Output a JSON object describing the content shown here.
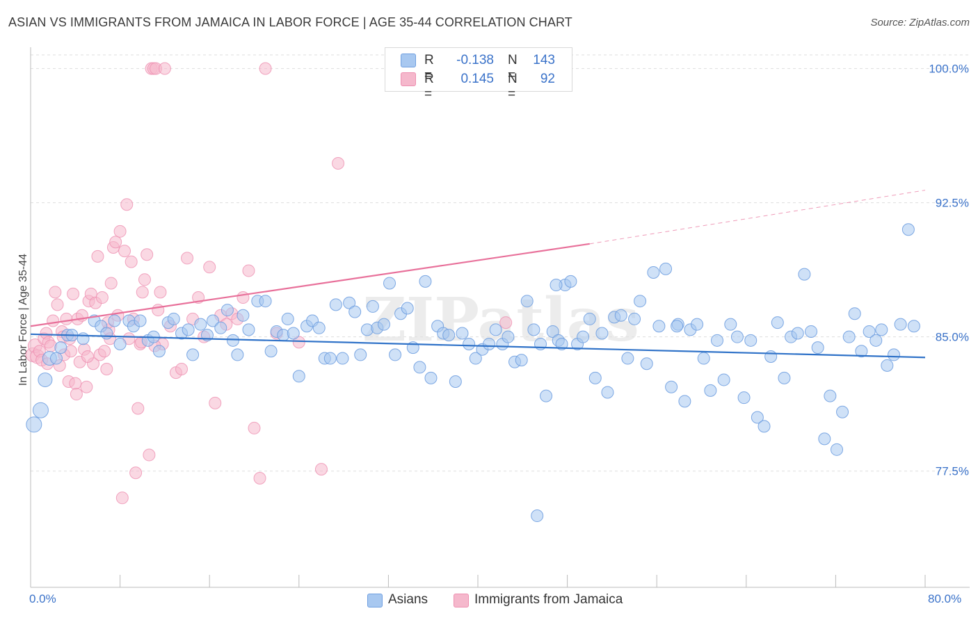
{
  "title": "ASIAN VS IMMIGRANTS FROM JAMAICA IN LABOR FORCE | AGE 35-44 CORRELATION CHART",
  "source": "Source: ZipAtlas.com",
  "watermark": "ZIPatlas",
  "legend": {
    "rows": [
      {
        "r_label": "R =",
        "r_value": "-0.138",
        "n_label": "N =",
        "n_value": "143",
        "color": "#a8c8f0"
      },
      {
        "r_label": "R =",
        "r_value": "0.145",
        "n_label": "N =",
        "n_value": "92",
        "color": "#f5b8cc"
      }
    ]
  },
  "bottom_legend": [
    {
      "label": "Asians",
      "color": "#a8c8f0"
    },
    {
      "label": "Immigrants from Jamaica",
      "color": "#f5b8cc"
    }
  ],
  "colors": {
    "asian_fill": "#a8c8f0",
    "asian_stroke": "#6f9fe0",
    "asian_line": "#2f72c8",
    "jamaica_fill": "#f5b8cc",
    "jamaica_stroke": "#ee8fb0",
    "jamaica_line": "#e8709a",
    "tick_label": "#3a72c9",
    "grid": "#dddddd"
  },
  "chart_data": {
    "type": "scatter",
    "title": "ASIAN VS IMMIGRANTS FROM JAMAICA IN LABOR FORCE | AGE 35-44 CORRELATION CHART",
    "xlabel": "",
    "ylabel": "In Labor Force | Age 35-44",
    "xlim": [
      0,
      80
    ],
    "ylim": [
      71.0,
      101.5
    ],
    "x_tick_labels": [
      "0.0%",
      "80.0%"
    ],
    "y_ticks": [
      77.5,
      85.0,
      92.5,
      100.0
    ],
    "y_tick_labels": [
      "77.5%",
      "85.0%",
      "92.5%",
      "100.0%"
    ],
    "grid": "horizontal dashed",
    "legend_position": "top-center",
    "series": [
      {
        "name": "Asians",
        "r": -0.138,
        "n": 143,
        "trend": {
          "x": [
            0,
            80
          ],
          "y": [
            85.15,
            83.85
          ],
          "style": "solid"
        },
        "points": [
          [
            0.3,
            80.1
          ],
          [
            0.9,
            80.9
          ],
          [
            1.3,
            82.6
          ],
          [
            1.7,
            83.8
          ],
          [
            2.3,
            83.8
          ],
          [
            2.7,
            84.4
          ],
          [
            3.3,
            85.1
          ],
          [
            3.7,
            85.1
          ],
          [
            4.7,
            84.9
          ],
          [
            5.7,
            85.9
          ],
          [
            6.3,
            85.6
          ],
          [
            6.8,
            85.2
          ],
          [
            7.5,
            85.9
          ],
          [
            8.0,
            84.6
          ],
          [
            8.8,
            85.9
          ],
          [
            9.2,
            85.6
          ],
          [
            9.8,
            85.9
          ],
          [
            10.5,
            84.8
          ],
          [
            11.0,
            85.0
          ],
          [
            11.5,
            84.2
          ],
          [
            12.3,
            85.8
          ],
          [
            12.8,
            86.0
          ],
          [
            13.5,
            85.2
          ],
          [
            14.1,
            85.4
          ],
          [
            14.5,
            84.0
          ],
          [
            15.2,
            85.7
          ],
          [
            15.8,
            85.1
          ],
          [
            16.3,
            85.9
          ],
          [
            17.0,
            85.5
          ],
          [
            17.6,
            86.5
          ],
          [
            18.1,
            84.8
          ],
          [
            18.5,
            84.0
          ],
          [
            19.0,
            86.2
          ],
          [
            19.5,
            85.4
          ],
          [
            20.3,
            87.0
          ],
          [
            21.0,
            87.0
          ],
          [
            21.5,
            84.2
          ],
          [
            22.0,
            85.3
          ],
          [
            22.6,
            85.1
          ],
          [
            23.0,
            86.0
          ],
          [
            23.5,
            85.2
          ],
          [
            24.0,
            82.8
          ],
          [
            24.7,
            85.6
          ],
          [
            25.2,
            85.9
          ],
          [
            25.8,
            85.5
          ],
          [
            26.3,
            83.8
          ],
          [
            26.8,
            83.8
          ],
          [
            27.3,
            86.8
          ],
          [
            27.9,
            83.8
          ],
          [
            28.5,
            86.9
          ],
          [
            29.0,
            86.4
          ],
          [
            29.5,
            84.0
          ],
          [
            30.1,
            85.4
          ],
          [
            30.6,
            86.7
          ],
          [
            31.0,
            85.5
          ],
          [
            31.6,
            85.7
          ],
          [
            32.1,
            88.0
          ],
          [
            32.6,
            84.0
          ],
          [
            33.1,
            86.3
          ],
          [
            33.7,
            86.6
          ],
          [
            34.2,
            84.4
          ],
          [
            34.8,
            83.3
          ],
          [
            35.3,
            88.1
          ],
          [
            35.8,
            82.7
          ],
          [
            36.4,
            85.6
          ],
          [
            36.9,
            85.2
          ],
          [
            37.4,
            85.1
          ],
          [
            38.0,
            82.5
          ],
          [
            38.6,
            85.2
          ],
          [
            39.2,
            84.6
          ],
          [
            39.8,
            83.8
          ],
          [
            40.4,
            84.3
          ],
          [
            41.0,
            84.6
          ],
          [
            41.6,
            85.4
          ],
          [
            42.2,
            84.6
          ],
          [
            42.7,
            85.0
          ],
          [
            43.3,
            83.6
          ],
          [
            43.9,
            83.7
          ],
          [
            44.4,
            87.0
          ],
          [
            45.0,
            85.4
          ],
          [
            45.6,
            84.6
          ],
          [
            46.1,
            81.7
          ],
          [
            46.7,
            85.3
          ],
          [
            47.2,
            84.8
          ],
          [
            47.8,
            87.9
          ],
          [
            48.3,
            88.1
          ],
          [
            48.9,
            84.6
          ],
          [
            49.4,
            85.0
          ],
          [
            50.0,
            86.0
          ],
          [
            50.5,
            82.7
          ],
          [
            51.1,
            85.2
          ],
          [
            51.6,
            81.9
          ],
          [
            52.2,
            86.1
          ],
          [
            52.8,
            86.2
          ],
          [
            53.4,
            83.8
          ],
          [
            54.0,
            86.0
          ],
          [
            54.5,
            87.0
          ],
          [
            55.1,
            83.5
          ],
          [
            55.7,
            88.6
          ],
          [
            56.2,
            85.6
          ],
          [
            56.8,
            88.8
          ],
          [
            57.3,
            82.2
          ],
          [
            57.9,
            85.7
          ],
          [
            58.5,
            81.4
          ],
          [
            59.0,
            85.4
          ],
          [
            59.6,
            85.7
          ],
          [
            60.2,
            83.8
          ],
          [
            60.8,
            82.0
          ],
          [
            61.4,
            84.8
          ],
          [
            62.0,
            82.6
          ],
          [
            62.6,
            85.7
          ],
          [
            63.2,
            85.0
          ],
          [
            63.8,
            81.6
          ],
          [
            64.4,
            84.8
          ],
          [
            65.0,
            80.5
          ],
          [
            65.6,
            80.0
          ],
          [
            66.2,
            83.9
          ],
          [
            66.8,
            85.8
          ],
          [
            67.4,
            82.7
          ],
          [
            68.0,
            85.0
          ],
          [
            68.6,
            85.2
          ],
          [
            69.2,
            88.5
          ],
          [
            69.8,
            85.3
          ],
          [
            70.4,
            84.4
          ],
          [
            71.0,
            79.3
          ],
          [
            71.5,
            81.7
          ],
          [
            72.1,
            78.7
          ],
          [
            72.6,
            80.8
          ],
          [
            73.2,
            85.0
          ],
          [
            73.7,
            86.3
          ],
          [
            74.3,
            84.2
          ],
          [
            75.0,
            85.3
          ],
          [
            75.6,
            84.8
          ],
          [
            76.1,
            85.4
          ],
          [
            76.6,
            83.4
          ],
          [
            77.2,
            84.0
          ],
          [
            77.8,
            85.7
          ],
          [
            78.5,
            91.0
          ],
          [
            79.0,
            85.6
          ],
          [
            57.8,
            85.6
          ],
          [
            47.0,
            87.9
          ],
          [
            45.3,
            75.0
          ],
          [
            47.5,
            84.6
          ]
        ]
      },
      {
        "name": "Immigrants from Jamaica",
        "r": 0.145,
        "n": 92,
        "trend": {
          "x": [
            0,
            50
          ],
          "y": [
            85.6,
            90.2
          ],
          "extension_x": [
            50,
            80
          ],
          "extension_y": [
            90.2,
            93.2
          ],
          "style": "solid then dashed"
        },
        "points": [
          [
            0.2,
            84.0
          ],
          [
            0.4,
            84.5
          ],
          [
            0.6,
            83.9
          ],
          [
            0.8,
            84.2
          ],
          [
            1.0,
            83.7
          ],
          [
            1.2,
            84.9
          ],
          [
            1.4,
            85.2
          ],
          [
            1.6,
            84.7
          ],
          [
            1.8,
            84.5
          ],
          [
            2.0,
            85.9
          ],
          [
            2.2,
            87.5
          ],
          [
            2.4,
            86.8
          ],
          [
            2.6,
            83.4
          ],
          [
            2.8,
            85.3
          ],
          [
            3.0,
            84.0
          ],
          [
            3.2,
            86.0
          ],
          [
            3.4,
            82.5
          ],
          [
            3.6,
            84.2
          ],
          [
            3.8,
            87.4
          ],
          [
            4.0,
            82.4
          ],
          [
            4.2,
            86.0
          ],
          [
            4.4,
            83.6
          ],
          [
            4.6,
            86.2
          ],
          [
            4.8,
            84.3
          ],
          [
            5.0,
            82.2
          ],
          [
            5.2,
            87.0
          ],
          [
            5.4,
            87.4
          ],
          [
            5.6,
            83.5
          ],
          [
            5.8,
            86.9
          ],
          [
            6.0,
            89.5
          ],
          [
            6.2,
            84.0
          ],
          [
            6.4,
            87.2
          ],
          [
            6.6,
            84.2
          ],
          [
            6.8,
            83.2
          ],
          [
            7.0,
            85.4
          ],
          [
            7.2,
            88.0
          ],
          [
            7.4,
            90.0
          ],
          [
            7.6,
            90.3
          ],
          [
            7.8,
            86.2
          ],
          [
            8.0,
            90.9
          ],
          [
            8.2,
            76.0
          ],
          [
            8.4,
            89.8
          ],
          [
            8.6,
            92.4
          ],
          [
            8.8,
            84.9
          ],
          [
            9.0,
            89.2
          ],
          [
            9.2,
            86.0
          ],
          [
            9.4,
            77.4
          ],
          [
            9.6,
            81.0
          ],
          [
            9.8,
            84.6
          ],
          [
            10.0,
            87.5
          ],
          [
            10.2,
            88.2
          ],
          [
            10.4,
            89.6
          ],
          [
            10.6,
            78.4
          ],
          [
            10.8,
            100.0
          ],
          [
            11.0,
            100.0
          ],
          [
            11.2,
            100.0
          ],
          [
            11.4,
            86.5
          ],
          [
            11.6,
            87.5
          ],
          [
            11.8,
            84.6
          ],
          [
            12.0,
            100.0
          ],
          [
            12.5,
            85.6
          ],
          [
            13.0,
            83.0
          ],
          [
            13.5,
            83.2
          ],
          [
            14.0,
            89.4
          ],
          [
            14.5,
            86.0
          ],
          [
            15.0,
            87.2
          ],
          [
            15.5,
            85.0
          ],
          [
            16.0,
            88.9
          ],
          [
            16.5,
            81.3
          ],
          [
            17.0,
            86.2
          ],
          [
            17.5,
            85.7
          ],
          [
            18.0,
            86.3
          ],
          [
            18.5,
            86.0
          ],
          [
            19.0,
            87.2
          ],
          [
            19.5,
            88.7
          ],
          [
            20.0,
            79.9
          ],
          [
            20.5,
            77.1
          ],
          [
            21.0,
            100.0
          ],
          [
            22.0,
            85.2
          ],
          [
            24.0,
            84.7
          ],
          [
            26.0,
            77.6
          ],
          [
            27.5,
            94.7
          ],
          [
            6.9,
            85.8
          ],
          [
            4.1,
            81.8
          ],
          [
            2.9,
            85.0
          ],
          [
            1.5,
            83.5
          ],
          [
            3.5,
            84.9
          ],
          [
            5.1,
            83.9
          ],
          [
            7.1,
            84.9
          ],
          [
            9.9,
            84.7
          ],
          [
            11.1,
            84.5
          ],
          [
            42.5,
            85.8
          ]
        ]
      }
    ]
  }
}
